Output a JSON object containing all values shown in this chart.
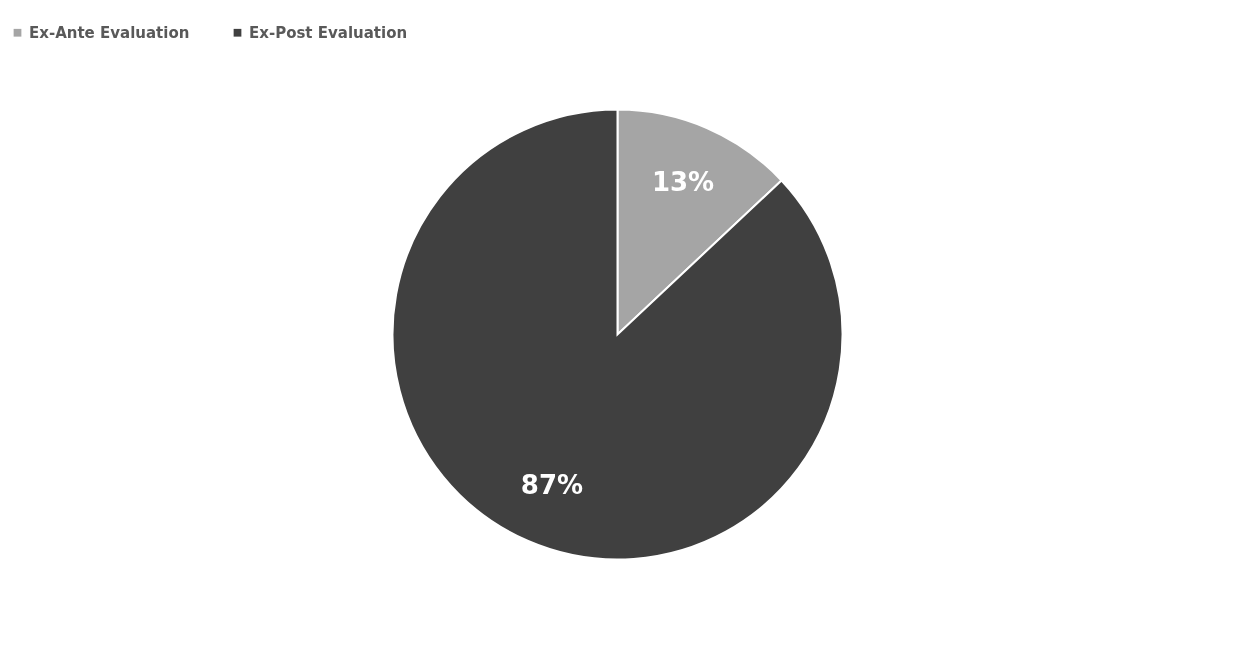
{
  "chart_data": {
    "type": "pie",
    "categories": [
      "Ex-Ante Evaluation",
      "Ex-Post Evaluation"
    ],
    "values": [
      13,
      87
    ],
    "colors": [
      "#a5a5a5",
      "#404040"
    ],
    "value_labels": [
      "13%",
      "87%"
    ],
    "legend": "top"
  }
}
